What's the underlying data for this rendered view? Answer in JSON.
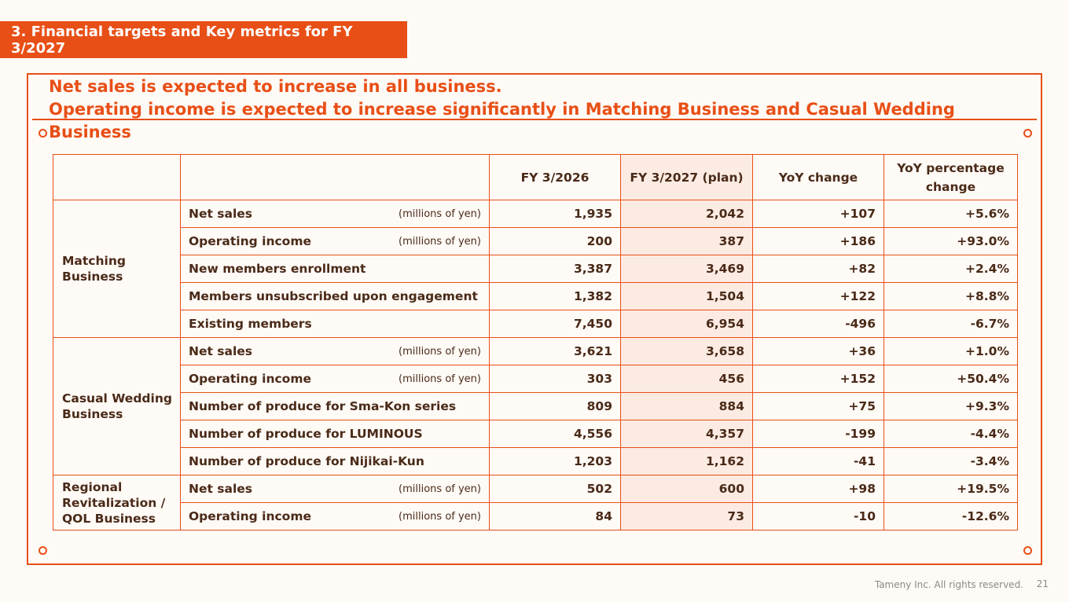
{
  "section_title": "3. Financial targets and Key metrics for FY 3/2027",
  "headline": {
    "line1": "Net sales is expected to increase in all business.",
    "line2": "Operating income is expected to increase significantly in Matching Business and Casual Wedding Business"
  },
  "table": {
    "headers": [
      "",
      "",
      "FY 3/2026",
      "FY 3/2027 (plan)",
      "YoY change",
      "YoY percentage change"
    ],
    "segments": [
      {
        "name": "Matching Business",
        "rows": [
          {
            "metric": "Net sales",
            "unit": "(millions of yen)",
            "fy2026": "1,935",
            "fy2027": "2,042",
            "yoy": "+107",
            "yoy_pct": "+5.6%"
          },
          {
            "metric": "Operating income",
            "unit": "(millions of yen)",
            "fy2026": "200",
            "fy2027": "387",
            "yoy": "+186",
            "yoy_pct": "+93.0%"
          },
          {
            "metric": "New members enrollment",
            "unit": "",
            "fy2026": "3,387",
            "fy2027": "3,469",
            "yoy": "+82",
            "yoy_pct": "+2.4%"
          },
          {
            "metric": "Members unsubscribed upon engagement",
            "unit": "",
            "fy2026": "1,382",
            "fy2027": "1,504",
            "yoy": "+122",
            "yoy_pct": "+8.8%"
          },
          {
            "metric": "Existing members",
            "unit": "",
            "fy2026": "7,450",
            "fy2027": "6,954",
            "yoy": "-496",
            "yoy_pct": "-6.7%"
          }
        ]
      },
      {
        "name": "Casual Wedding Business",
        "rows": [
          {
            "metric": "Net sales",
            "unit": "(millions of yen)",
            "fy2026": "3,621",
            "fy2027": "3,658",
            "yoy": "+36",
            "yoy_pct": "+1.0%"
          },
          {
            "metric": "Operating income",
            "unit": "(millions of yen)",
            "fy2026": "303",
            "fy2027": "456",
            "yoy": "+152",
            "yoy_pct": "+50.4%"
          },
          {
            "metric": "Number of produce for Sma-Kon series",
            "unit": "",
            "fy2026": "809",
            "fy2027": "884",
            "yoy": "+75",
            "yoy_pct": "+9.3%"
          },
          {
            "metric": "Number of produce for LUMINOUS",
            "unit": "",
            "fy2026": "4,556",
            "fy2027": "4,357",
            "yoy": "-199",
            "yoy_pct": "-4.4%"
          },
          {
            "metric": "Number of produce for Nijikai-Kun",
            "unit": "",
            "fy2026": "1,203",
            "fy2027": "1,162",
            "yoy": "-41",
            "yoy_pct": "-3.4%"
          }
        ]
      },
      {
        "name": "Regional Revitalization / QOL Business",
        "rows": [
          {
            "metric": "Net sales",
            "unit": "(millions of yen)",
            "fy2026": "502",
            "fy2027": "600",
            "yoy": "+98",
            "yoy_pct": "+19.5%"
          },
          {
            "metric": "Operating income",
            "unit": "(millions of yen)",
            "fy2026": "84",
            "fy2027": "73",
            "yoy": "-10",
            "yoy_pct": "-12.6%"
          }
        ]
      }
    ]
  },
  "footer": {
    "copyright": "Tameny Inc. All rights reserved.",
    "page_number": "21"
  },
  "colors": {
    "accent": "#e84f16",
    "plan_column_bg": "#fcebe2",
    "background": "#fefaf6"
  }
}
